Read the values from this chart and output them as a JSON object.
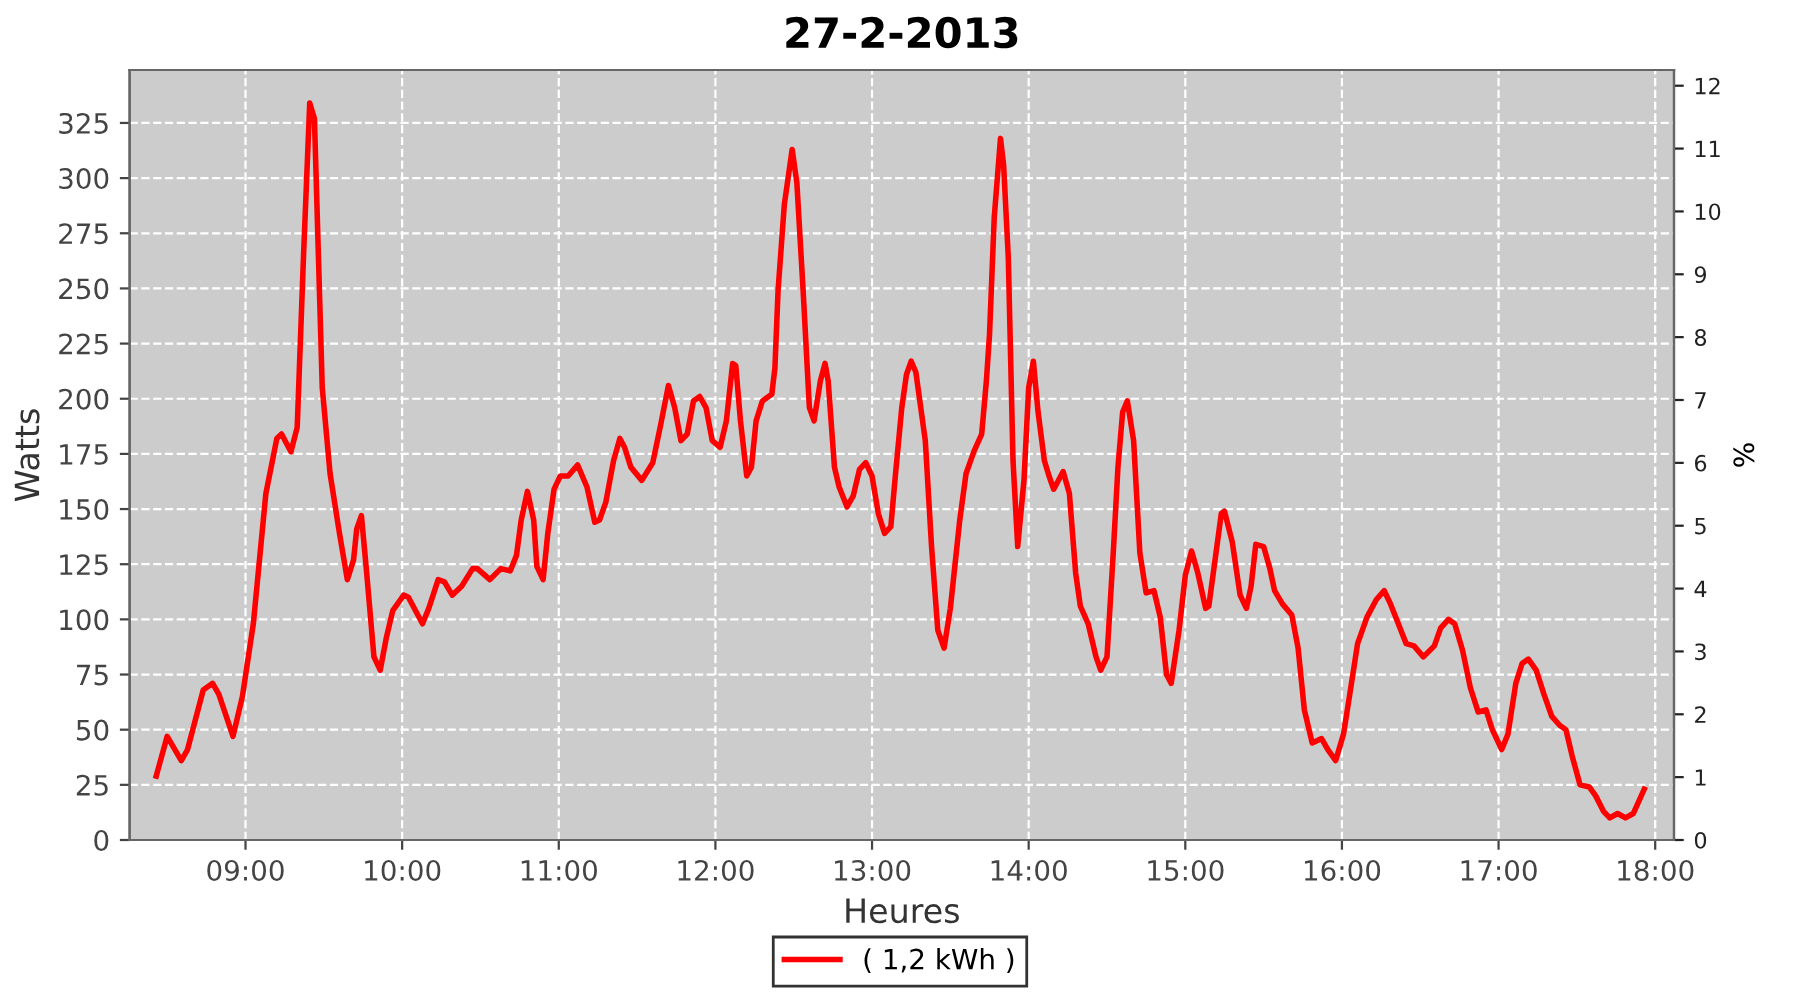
{
  "chart_data": {
    "type": "line",
    "title": "27-2-2013",
    "xlabel": "Heures",
    "ylabel": "Watts",
    "y2label": "%",
    "x": [
      8.43,
      8.5,
      8.59,
      8.63,
      8.73,
      8.79,
      8.83,
      8.92,
      8.98,
      9.05,
      9.13,
      9.2,
      9.23,
      9.29,
      9.33,
      9.37,
      9.41,
      9.44,
      9.49,
      9.54,
      9.6,
      9.65,
      9.69,
      9.71,
      9.74,
      9.77,
      9.82,
      9.86,
      9.9,
      9.94,
      10.01,
      10.04,
      10.13,
      10.17,
      10.23,
      10.27,
      10.32,
      10.38,
      10.45,
      10.48,
      10.56,
      10.63,
      10.69,
      10.73,
      10.76,
      10.8,
      10.84,
      10.86,
      10.9,
      10.93,
      10.97,
      11.01,
      11.06,
      11.12,
      11.18,
      11.23,
      11.26,
      11.3,
      11.35,
      11.39,
      11.42,
      11.46,
      11.53,
      11.6,
      11.65,
      11.7,
      11.74,
      11.78,
      11.82,
      11.86,
      11.9,
      11.94,
      11.98,
      12.03,
      12.07,
      12.11,
      12.13,
      12.16,
      12.2,
      12.23,
      12.26,
      12.3,
      12.36,
      12.38,
      12.4,
      12.44,
      12.49,
      12.52,
      12.56,
      12.6,
      12.63,
      12.67,
      12.7,
      12.72,
      12.76,
      12.79,
      12.84,
      12.88,
      12.92,
      12.96,
      13.0,
      13.04,
      13.08,
      13.12,
      13.15,
      13.19,
      13.22,
      13.25,
      13.28,
      13.34,
      13.38,
      13.42,
      13.46,
      13.5,
      13.56,
      13.6,
      13.65,
      13.7,
      13.73,
      13.75,
      13.78,
      13.82,
      13.84,
      13.87,
      13.9,
      13.93,
      13.97,
      14.0,
      14.03,
      14.06,
      14.1,
      14.13,
      14.16,
      14.22,
      14.26,
      14.3,
      14.33,
      14.38,
      14.43,
      14.46,
      14.5,
      14.54,
      14.57,
      14.6,
      14.63,
      14.67,
      14.71,
      14.75,
      14.8,
      14.84,
      14.88,
      14.91,
      14.96,
      15.0,
      15.04,
      15.08,
      15.13,
      15.15,
      15.19,
      15.23,
      15.25,
      15.3,
      15.35,
      15.39,
      15.42,
      15.45,
      15.5,
      15.54,
      15.57,
      15.62,
      15.68,
      15.72,
      15.76,
      15.81,
      15.87,
      15.91,
      15.96,
      16.01,
      16.05,
      16.1,
      16.16,
      16.22,
      16.27,
      16.31,
      16.36,
      16.41,
      16.46,
      16.52,
      16.59,
      16.63,
      16.68,
      16.72,
      16.77,
      16.82,
      16.87,
      16.92,
      16.96,
      17.02,
      17.06,
      17.11,
      17.15,
      17.19,
      17.24,
      17.29,
      17.34,
      17.39,
      17.43,
      17.47,
      17.52,
      17.58,
      17.62,
      17.67,
      17.71,
      17.76,
      17.81,
      17.86,
      17.93
    ],
    "series": [
      {
        "name": "( 1,2 kWh )",
        "color": "#ff0000",
        "values": [
          29,
          47,
          36,
          41,
          68,
          71,
          66,
          47,
          65,
          98,
          157,
          182,
          184,
          176,
          187,
          264,
          334,
          327,
          205,
          166,
          139,
          118,
          127,
          141,
          147,
          124,
          83,
          77,
          92,
          104,
          111,
          110,
          98,
          105,
          118,
          117,
          111,
          115,
          123,
          123,
          118,
          123,
          122,
          129,
          145,
          158,
          145,
          124,
          118,
          139,
          159,
          165,
          165,
          170,
          160,
          144,
          145,
          153,
          172,
          182,
          178,
          169,
          163,
          171,
          188,
          206,
          196,
          181,
          184,
          199,
          201,
          196,
          181,
          178,
          190,
          216,
          215,
          190,
          165,
          169,
          190,
          199,
          202,
          214,
          249,
          288,
          313,
          298,
          249,
          196,
          190,
          208,
          216,
          208,
          169,
          160,
          151,
          156,
          168,
          171,
          165,
          148,
          139,
          142,
          166,
          196,
          211,
          217,
          212,
          181,
          133,
          95,
          87,
          105,
          145,
          166,
          176,
          184,
          208,
          229,
          282,
          318,
          306,
          264,
          172,
          133,
          163,
          205,
          217,
          194,
          172,
          165,
          159,
          167,
          157,
          121,
          106,
          98,
          83,
          77,
          83,
          130,
          169,
          194,
          199,
          181,
          130,
          112,
          113,
          101,
          75,
          71,
          95,
          120,
          131,
          121,
          105,
          106,
          127,
          148,
          149,
          135,
          111,
          105,
          115,
          134,
          133,
          123,
          113,
          107,
          102,
          87,
          59,
          44,
          46,
          41,
          36,
          48,
          66,
          89,
          101,
          109,
          113,
          107,
          98,
          89,
          88,
          83,
          88,
          96,
          100,
          98,
          86,
          69,
          58,
          59,
          50,
          41,
          48,
          71,
          80,
          82,
          77,
          66,
          56,
          52,
          50,
          38,
          25,
          24,
          20,
          13,
          10,
          12,
          10,
          12,
          23
        ]
      }
    ],
    "xlim": [
      8.26,
      18.12
    ],
    "xticks": [
      {
        "value": 9,
        "label": "09:00"
      },
      {
        "value": 10,
        "label": "10:00"
      },
      {
        "value": 11,
        "label": "11:00"
      },
      {
        "value": 12,
        "label": "12:00"
      },
      {
        "value": 13,
        "label": "13:00"
      },
      {
        "value": 14,
        "label": "14:00"
      },
      {
        "value": 15,
        "label": "15:00"
      },
      {
        "value": 16,
        "label": "16:00"
      },
      {
        "value": 17,
        "label": "17:00"
      },
      {
        "value": 18,
        "label": "18:00"
      }
    ],
    "ylim": [
      0,
      349
    ],
    "yticks": [
      0,
      25,
      50,
      75,
      100,
      125,
      150,
      175,
      200,
      225,
      250,
      275,
      300,
      325
    ],
    "y2lim": [
      0,
      12.25
    ],
    "y2ticks": [
      0,
      1,
      2,
      3,
      4,
      5,
      6,
      7,
      8,
      9,
      10,
      11,
      12
    ],
    "grid": true,
    "legend": "bottom",
    "marker": "none",
    "line_style": "solid"
  }
}
